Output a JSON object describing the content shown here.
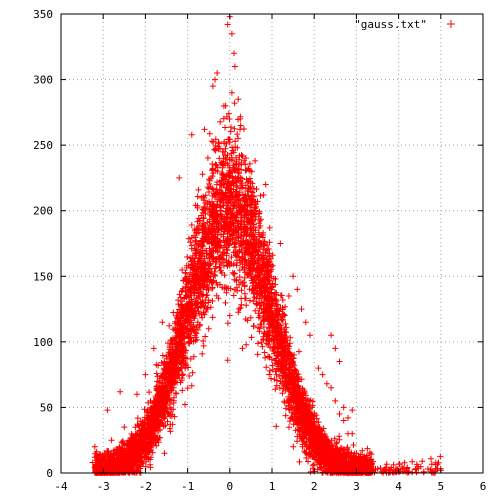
{
  "chart_data": {
    "type": "scatter",
    "title": "",
    "xlabel": "",
    "ylabel": "",
    "xlim": [
      -4,
      6
    ],
    "ylim": [
      0,
      350
    ],
    "x_ticks": [
      -4,
      -3,
      -2,
      -1,
      0,
      1,
      2,
      3,
      4,
      5,
      6
    ],
    "y_ticks": [
      0,
      50,
      100,
      150,
      200,
      250,
      300,
      350
    ],
    "grid": true,
    "legend_position": "top-right",
    "marker": "plus",
    "series": [
      {
        "name": "\"gauss.txt\"",
        "color": "#ff0000",
        "shape": "gaussian",
        "peak": 200,
        "center": 0,
        "sigma": 1,
        "x_range": [
          -3.2,
          5
        ],
        "approx_point_count": 6000,
        "points": [
          [
            0,
            348
          ],
          [
            -0.05,
            342
          ],
          [
            0.05,
            335
          ],
          [
            0.1,
            320
          ],
          [
            0.12,
            310
          ],
          [
            -0.35,
            300
          ],
          [
            -0.3,
            305
          ],
          [
            -0.4,
            295
          ],
          [
            0.05,
            290
          ],
          [
            0.2,
            285
          ],
          [
            -0.1,
            280
          ],
          [
            0.25,
            270
          ],
          [
            -0.9,
            258
          ],
          [
            -0.6,
            262
          ],
          [
            0.6,
            238
          ],
          [
            0.85,
            220
          ],
          [
            0.8,
            212
          ],
          [
            -1.2,
            225
          ],
          [
            0,
            120
          ],
          [
            -0.05,
            86
          ],
          [
            0.3,
            95
          ],
          [
            -0.5,
            110
          ],
          [
            0.7,
            130
          ],
          [
            -2.6,
            62
          ],
          [
            -2.9,
            48
          ],
          [
            -3.2,
            20
          ],
          [
            -3.2,
            12
          ],
          [
            -3.25,
            8
          ],
          [
            -3.1,
            5
          ],
          [
            -2.8,
            25
          ],
          [
            -2.5,
            35
          ],
          [
            -2.2,
            60
          ],
          [
            -2,
            75
          ],
          [
            -1.8,
            95
          ],
          [
            -1.6,
            115
          ],
          [
            1.2,
            175
          ],
          [
            1.5,
            150
          ],
          [
            1.6,
            140
          ],
          [
            1.7,
            125
          ],
          [
            1.8,
            115
          ],
          [
            1.9,
            105
          ],
          [
            1.4,
            135
          ],
          [
            2.1,
            80
          ],
          [
            2.2,
            75
          ],
          [
            2.4,
            65
          ],
          [
            2.5,
            55
          ],
          [
            2.6,
            45
          ],
          [
            2.3,
            68
          ],
          [
            2.7,
            40
          ],
          [
            2.8,
            30
          ],
          [
            2.9,
            48
          ],
          [
            3.0,
            15
          ],
          [
            3.1,
            5
          ],
          [
            2.4,
            105
          ],
          [
            2.5,
            95
          ],
          [
            2.6,
            85
          ],
          [
            2.7,
            50
          ],
          [
            2.8,
            42
          ],
          [
            2.9,
            30
          ],
          [
            3.0,
            2
          ],
          [
            3.2,
            1
          ],
          [
            3.4,
            2
          ],
          [
            3.6,
            1
          ],
          [
            3.8,
            2
          ],
          [
            4.0,
            1
          ],
          [
            4.2,
            2
          ],
          [
            4.4,
            3
          ],
          [
            4.6,
            1
          ],
          [
            4.8,
            1
          ],
          [
            5.0,
            2
          ],
          [
            3.3,
            3
          ],
          [
            3.7,
            4
          ],
          [
            4.1,
            3
          ]
        ]
      }
    ]
  }
}
